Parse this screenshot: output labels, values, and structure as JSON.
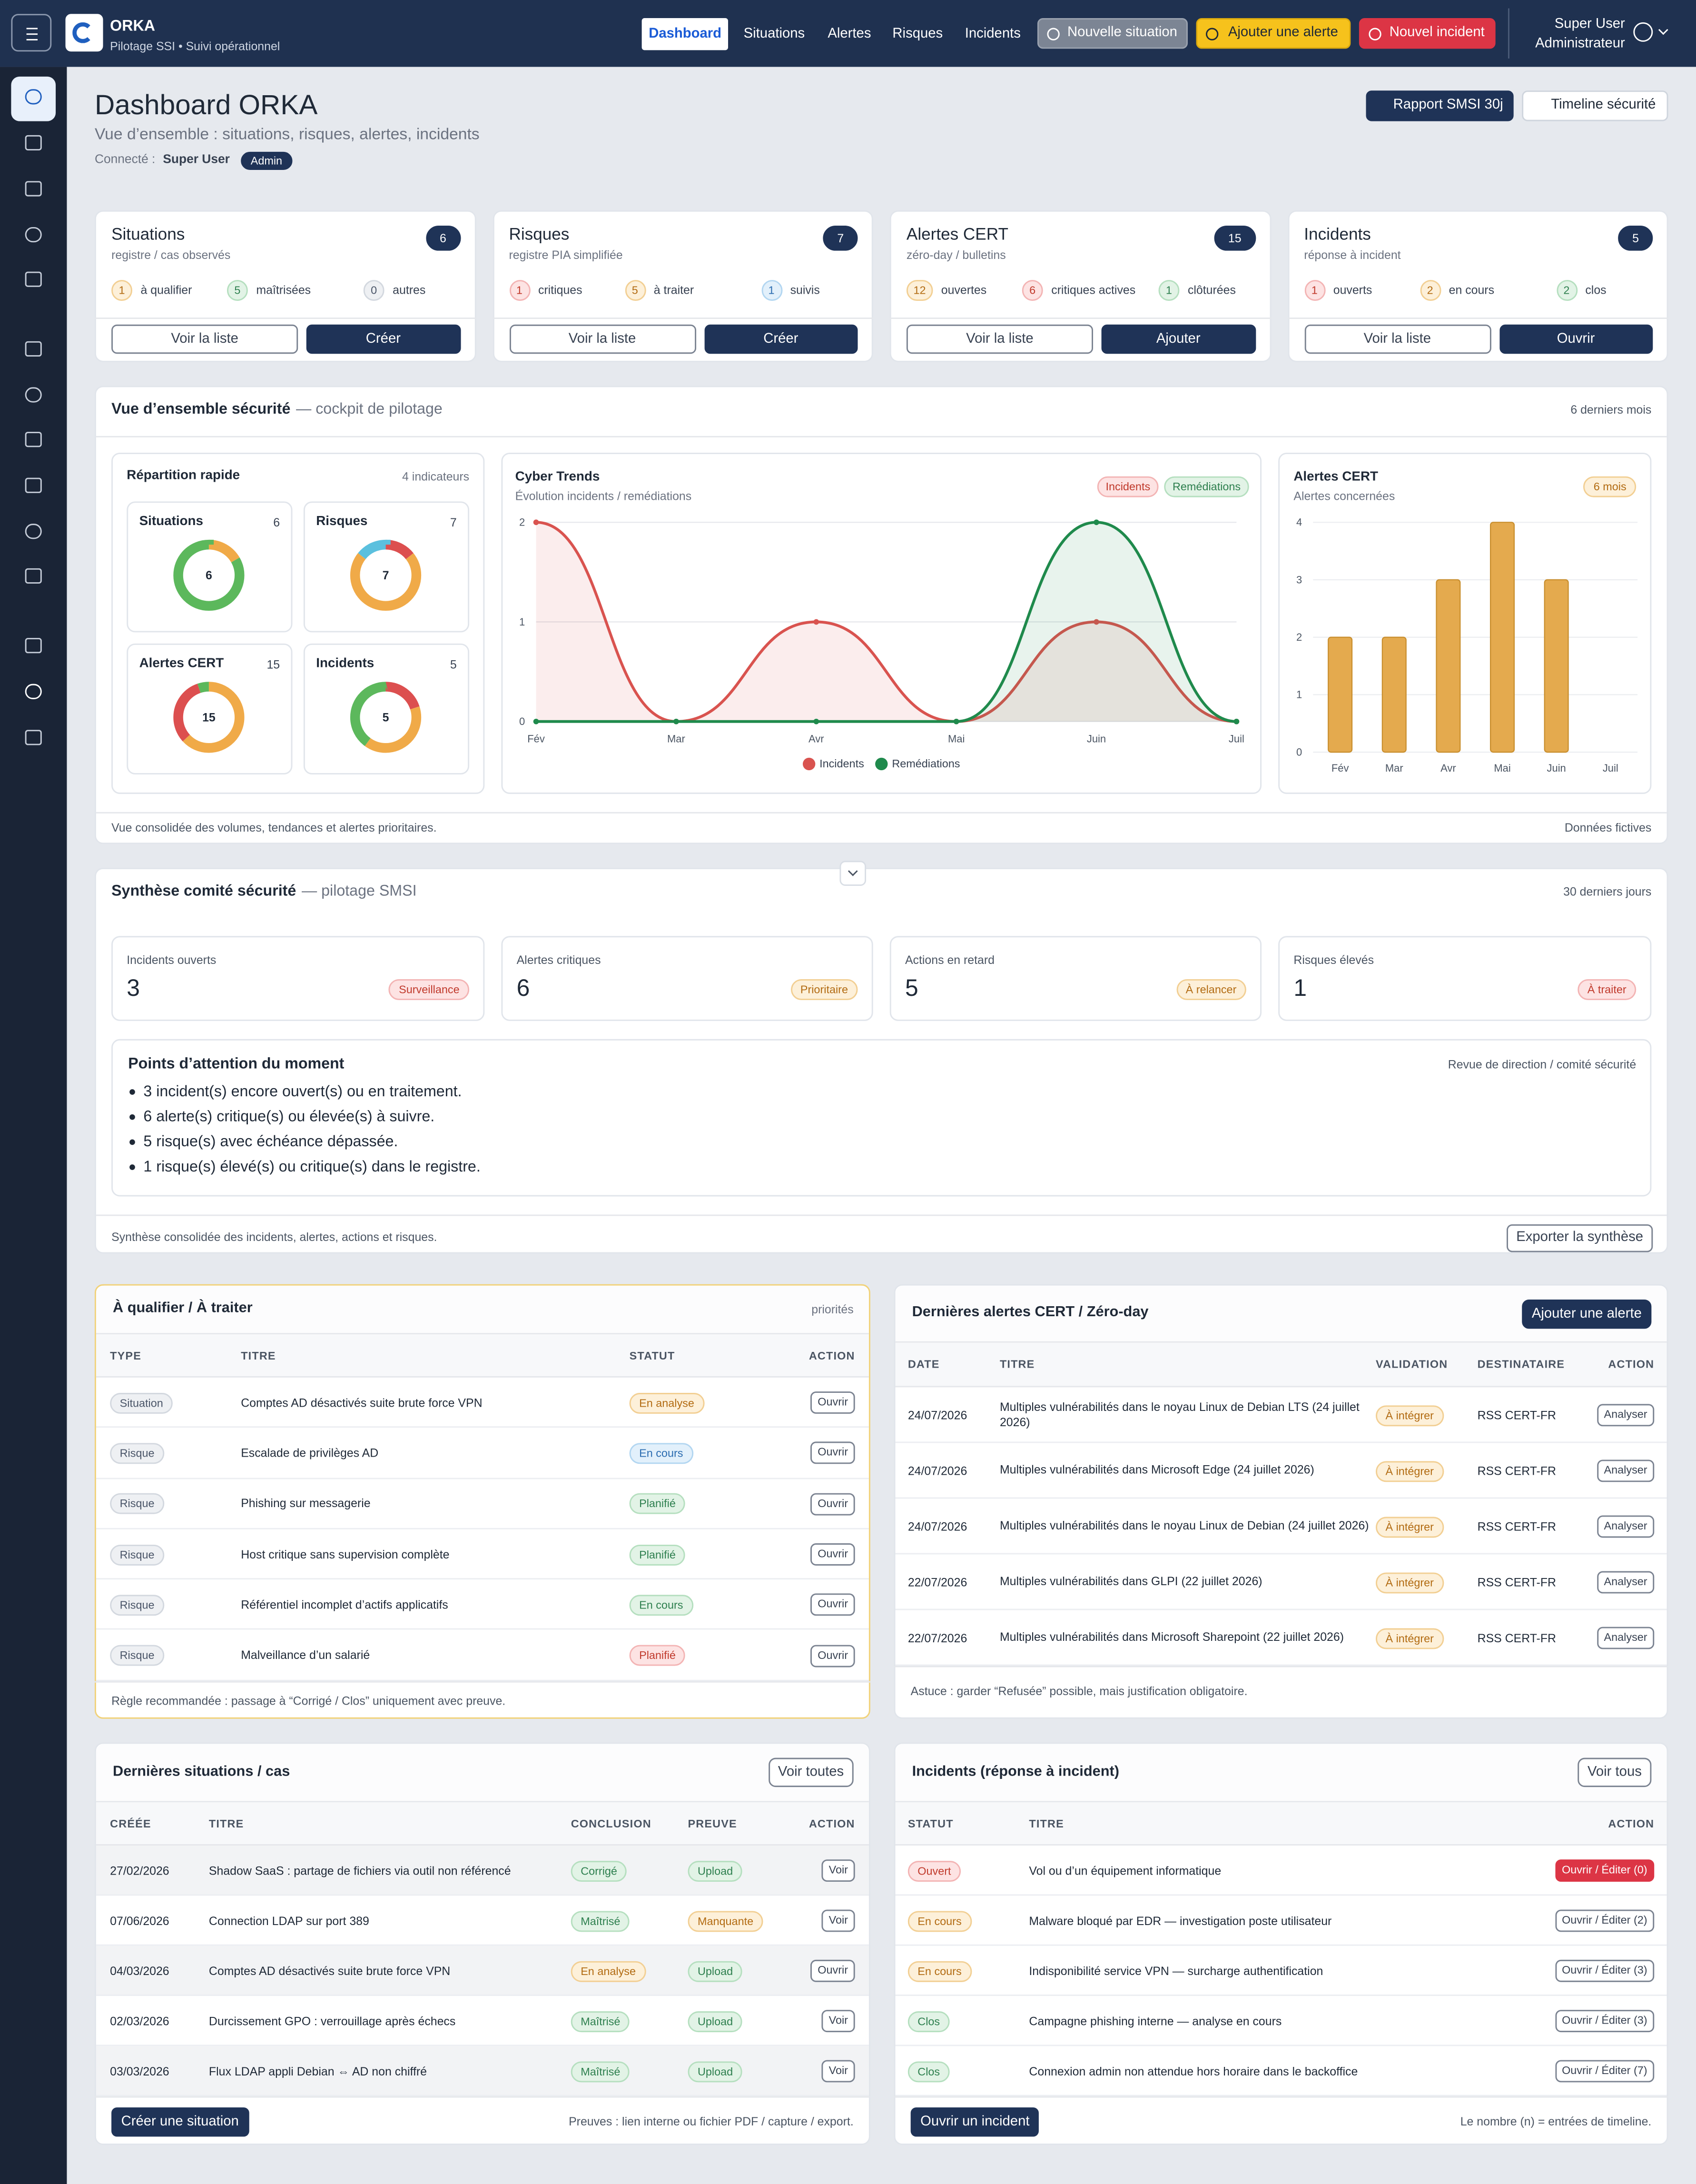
{
  "header": {
    "brand": "ORKA",
    "tagline": "Pilotage SSI • Suivi opérationnel",
    "nav": [
      "Dashboard",
      "Situations",
      "Alertes",
      "Risques",
      "Incidents"
    ],
    "nav_active": 0,
    "actions": [
      {
        "label": "Nouvelle situation",
        "tone": "muted"
      },
      {
        "label": "Ajouter une alerte",
        "tone": "yellow"
      },
      {
        "label": "Nouvel incident",
        "tone": "danger"
      }
    ],
    "user": {
      "name": "Super User",
      "role": "Administrateur"
    }
  },
  "page": {
    "title": "Dashboard ORKA",
    "subtitle": "Vue d’ensemble : situations, risques, alertes, incidents",
    "connected_label": "Connecté :",
    "user": "Super User",
    "badge": "Admin",
    "buttons": [
      {
        "label": "Rapport SMSI 30j",
        "tone": "dark"
      },
      {
        "label": "Timeline sécurité",
        "tone": "white"
      }
    ]
  },
  "cards": [
    {
      "title": "Situations",
      "subtitle": "registre / cas observés",
      "count": 6,
      "stats": [
        {
          "value": 1,
          "label": "à qualifier",
          "tone": "orange"
        },
        {
          "value": 5,
          "label": "maîtrisées",
          "tone": "green"
        },
        {
          "value": 0,
          "label": "autres",
          "tone": "gray"
        }
      ],
      "buttons": [
        "Voir la liste",
        "Créer"
      ]
    },
    {
      "title": "Risques",
      "subtitle": "registre PIA simplifiée",
      "count": 7,
      "stats": [
        {
          "value": 1,
          "label": "critiques",
          "tone": "red"
        },
        {
          "value": 5,
          "label": "à traiter",
          "tone": "orange"
        },
        {
          "value": 1,
          "label": "suivis",
          "tone": "blue"
        }
      ],
      "buttons": [
        "Voir la liste",
        "Créer"
      ]
    },
    {
      "title": "Alertes CERT",
      "subtitle": "zéro-day / bulletins",
      "count": 15,
      "stats": [
        {
          "value": 12,
          "label": "ouvertes",
          "tone": "orange"
        },
        {
          "value": 6,
          "label": "critiques actives",
          "tone": "red"
        },
        {
          "value": 1,
          "label": "clôturées",
          "tone": "green"
        }
      ],
      "buttons": [
        "Voir la liste",
        "Ajouter"
      ]
    },
    {
      "title": "Incidents",
      "subtitle": "réponse à incident",
      "count": 5,
      "stats": [
        {
          "value": 1,
          "label": "ouverts",
          "tone": "red"
        },
        {
          "value": 2,
          "label": "en cours",
          "tone": "orange"
        },
        {
          "value": 2,
          "label": "clos",
          "tone": "green"
        }
      ],
      "buttons": [
        "Voir la liste",
        "Ouvrir"
      ]
    }
  ],
  "overview": {
    "title": "Vue d’ensemble sécurité",
    "subtitle": "— cockpit de pilotage",
    "period": "6 derniers mois",
    "footer": "Vue consolidée des volumes, tendances et alertes prioritaires.",
    "footer_note": "Données fictives",
    "quick": {
      "title": "Répartition rapide",
      "note": "4 indicateurs"
    },
    "trends": {
      "type": "line",
      "title": "Cyber Trends",
      "subtitle": "Évolution incidents / remédiations",
      "categories": [
        "Fév",
        "Mar",
        "Avr",
        "Mai",
        "Juin",
        "Juil"
      ],
      "series": [
        {
          "name": "Incidents",
          "color": "#d9534f",
          "values": [
            2,
            0,
            1,
            0,
            1,
            0
          ]
        },
        {
          "name": "Remédiations",
          "color": "#1f8a4c",
          "values": [
            0,
            0,
            0,
            0,
            2,
            0
          ]
        }
      ],
      "ylim": [
        0,
        2
      ],
      "yticks": [
        0,
        1,
        2
      ],
      "grid": true,
      "legend": "bottom"
    },
    "cert": {
      "type": "bar",
      "title": "Alertes CERT",
      "subtitle": "Alertes concernées",
      "badge": "6 mois",
      "categories": [
        "Fév",
        "Mar",
        "Avr",
        "Mai",
        "Juin",
        "Juil"
      ],
      "values": [
        2,
        2,
        3,
        4,
        3,
        0
      ],
      "color": "#e4aa4e",
      "ylim": [
        0,
        4
      ],
      "yticks": [
        0,
        1,
        2,
        3,
        4
      ],
      "grid": true
    }
  },
  "synthesis": {
    "title": "Synthèse comité sécurité",
    "subtitle": "— pilotage SMSI",
    "period": "30 derniers jours",
    "kpis": [
      {
        "label": "Incidents ouverts",
        "value": 3,
        "tag": "Surveillance",
        "tone": "red"
      },
      {
        "label": "Alertes critiques",
        "value": 6,
        "tag": "Prioritaire",
        "tone": "orange"
      },
      {
        "label": "Actions en retard",
        "value": 5,
        "tag": "À relancer",
        "tone": "orange"
      },
      {
        "label": "Risques élevés",
        "value": 1,
        "tag": "À traiter",
        "tone": "red"
      }
    ],
    "points": {
      "title": "Points d’attention du moment",
      "note": "Revue de direction / comité sécurité",
      "items": [
        "3 incident(s) encore ouvert(s) ou en traitement.",
        "6 alerte(s) critique(s) ou élevée(s) à suivre.",
        "5 risque(s) avec échéance dépassée.",
        "1 risque(s) élevé(s) ou critique(s) dans le registre."
      ]
    },
    "footer": "Synthèse consolidée des incidents, alertes, actions et risques.",
    "button": "Exporter la synthèse"
  },
  "tables": [
    {
      "title": "À qualifier / À traiter",
      "note": "priorités",
      "columns": [
        {
          "label": "TYPE",
          "kind": "tag"
        },
        {
          "label": "TITRE",
          "kind": "text"
        },
        {
          "label": "STATUT",
          "kind": "pill"
        },
        {
          "label": "ACTION",
          "kind": "button"
        }
      ],
      "rows": [
        {
          "cells": [
            "Situation",
            "Comptes AD désactivés suite brute force VPN",
            {
              "text": "En analyse",
              "tone": "orange"
            },
            "Ouvrir"
          ]
        },
        {
          "cells": [
            "Risque",
            "Escalade de privilèges AD",
            {
              "text": "En cours",
              "tone": "blue"
            },
            "Ouvrir"
          ]
        },
        {
          "cells": [
            "Risque",
            "Phishing sur messagerie",
            {
              "text": "Planifié",
              "tone": "green"
            },
            "Ouvrir"
          ]
        },
        {
          "cells": [
            "Risque",
            "Host critique sans supervision complète",
            {
              "text": "Planifié",
              "tone": "green"
            },
            "Ouvrir"
          ]
        },
        {
          "cells": [
            "Risque",
            "Référentiel incomplet d’actifs applicatifs",
            {
              "text": "En cours",
              "tone": "green"
            },
            "Ouvrir"
          ]
        },
        {
          "cells": [
            "Risque",
            "Malveillance d’un salarié",
            {
              "text": "Planifié",
              "tone": "red"
            },
            "Ouvrir"
          ]
        }
      ],
      "footer": "Règle recommandée : passage à “Corrigé / Clos” uniquement avec preuve."
    },
    {
      "title": "Dernières alertes CERT / Zéro-day",
      "button": "Ajouter une alerte",
      "button_tone": "dark",
      "columns": [
        {
          "label": "DATE",
          "kind": "text"
        },
        {
          "label": "TITRE",
          "kind": "wrap"
        },
        {
          "label": "VALIDATION",
          "kind": "pill"
        },
        {
          "label": "DESTINATAIRE",
          "kind": "text"
        },
        {
          "label": "ACTION",
          "kind": "button"
        }
      ],
      "rows": [
        {
          "cells": [
            "24/07/2026",
            "Multiples vulnérabilités dans le noyau Linux de Debian LTS (24 juillet 2026)",
            {
              "text": "À intégrer",
              "tone": "orange"
            },
            "RSS CERT-FR",
            "Analyser"
          ]
        },
        {
          "cells": [
            "24/07/2026",
            "Multiples vulnérabilités dans Microsoft Edge (24 juillet 2026)",
            {
              "text": "À intégrer",
              "tone": "orange"
            },
            "RSS CERT-FR",
            "Analyser"
          ]
        },
        {
          "cells": [
            "24/07/2026",
            "Multiples vulnérabilités dans le noyau Linux de Debian (24 juillet 2026)",
            {
              "text": "À intégrer",
              "tone": "orange"
            },
            "RSS CERT-FR",
            "Analyser"
          ]
        },
        {
          "cells": [
            "22/07/2026",
            "Multiples vulnérabilités dans GLPI (22 juillet 2026)",
            {
              "text": "À intégrer",
              "tone": "orange"
            },
            "RSS CERT-FR",
            "Analyser"
          ]
        },
        {
          "cells": [
            "22/07/2026",
            "Multiples vulnérabilités dans Microsoft Sharepoint (22 juillet 2026)",
            {
              "text": "À intégrer",
              "tone": "orange"
            },
            "RSS CERT-FR",
            "Analyser"
          ]
        }
      ],
      "footer": "Astuce : garder “Refusée” possible, mais justification obligatoire."
    },
    {
      "title": "Dernières situations / cas",
      "button": "Voir toutes",
      "button_tone": "outline",
      "striped": true,
      "columns": [
        {
          "label": "CRÉÉE",
          "kind": "text"
        },
        {
          "label": "TITRE",
          "kind": "text"
        },
        {
          "label": "CONCLUSION",
          "kind": "pill"
        },
        {
          "label": "PREUVE",
          "kind": "pill"
        },
        {
          "label": "ACTION",
          "kind": "button"
        }
      ],
      "rows": [
        {
          "cells": [
            "27/02/2026",
            "Shadow SaaS : partage de fichiers via outil non référencé",
            {
              "text": "Corrigé",
              "tone": "green"
            },
            {
              "text": "Upload",
              "tone": "green"
            },
            "Voir"
          ]
        },
        {
          "cells": [
            "07/06/2026",
            "Connection LDAP sur port 389",
            {
              "text": "Maîtrisé",
              "tone": "green"
            },
            {
              "text": "Manquante",
              "tone": "orange"
            },
            "Voir"
          ]
        },
        {
          "cells": [
            "04/03/2026",
            "Comptes AD désactivés suite brute force VPN",
            {
              "text": "En analyse",
              "tone": "orange"
            },
            {
              "text": "Upload",
              "tone": "green"
            },
            "Ouvrir"
          ]
        },
        {
          "cells": [
            "02/03/2026",
            "Durcissement GPO : verrouillage après échecs",
            {
              "text": "Maîtrisé",
              "tone": "green"
            },
            {
              "text": "Upload",
              "tone": "green"
            },
            "Voir"
          ]
        },
        {
          "cells": [
            "03/03/2026",
            "Flux LDAP appli Debian ⇔ AD non chiffré",
            {
              "text": "Maîtrisé",
              "tone": "green"
            },
            {
              "text": "Upload",
              "tone": "green"
            },
            "Voir"
          ]
        }
      ],
      "footer_button": "Créer une situation",
      "footer": "Preuves : lien interne ou fichier PDF / capture / export."
    },
    {
      "title": "Incidents (réponse à incident)",
      "button": "Voir tous",
      "button_tone": "outline",
      "columns": [
        {
          "label": "STATUT",
          "kind": "pill"
        },
        {
          "label": "TITRE",
          "kind": "text"
        },
        {
          "label": "ACTION",
          "kind": "button"
        }
      ],
      "rows": [
        {
          "cells": [
            {
              "text": "Ouvert",
              "tone": "red"
            },
            "Vol ou d’un équipement informatique",
            {
              "text": "Ouvrir / Éditer (0)",
              "tone": "danger"
            }
          ]
        },
        {
          "cells": [
            {
              "text": "En cours",
              "tone": "orange"
            },
            "Malware bloqué par EDR — investigation poste utilisateur",
            "Ouvrir / Éditer (2)"
          ]
        },
        {
          "cells": [
            {
              "text": "En cours",
              "tone": "orange"
            },
            "Indisponibilité service VPN — surcharge authentification",
            "Ouvrir / Éditer (3)"
          ]
        },
        {
          "cells": [
            {
              "text": "Clos",
              "tone": "green"
            },
            "Campagne phishing interne — analyse en cours",
            "Ouvrir / Éditer (3)"
          ]
        },
        {
          "cells": [
            {
              "text": "Clos",
              "tone": "green"
            },
            "Connexion admin non attendue hors horaire dans le backoffice",
            "Ouvrir / Éditer (7)"
          ]
        }
      ],
      "footer_button": "Ouvrir un incident",
      "footer": "Le nombre (n) = entrées de timeline."
    }
  ]
}
